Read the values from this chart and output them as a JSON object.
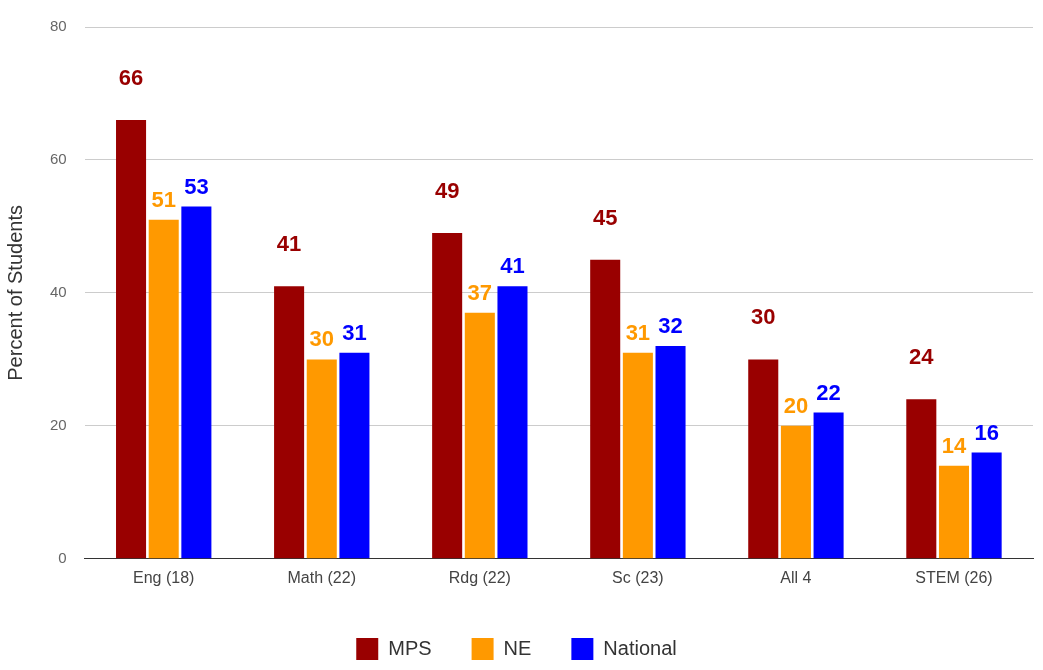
{
  "chart_data": {
    "type": "bar",
    "ylabel": "Percent of Students",
    "categories": [
      "Eng (18)",
      "Math (22)",
      "Rdg (22)",
      "Sc (23)",
      "All 4",
      "STEM (26)"
    ],
    "series": [
      {
        "name": "MPS",
        "color": "#990000",
        "values": [
          66,
          41,
          49,
          45,
          30,
          24
        ]
      },
      {
        "name": "NE",
        "color": "#ff9900",
        "values": [
          51,
          30,
          37,
          31,
          20,
          14
        ]
      },
      {
        "name": "National",
        "color": "#0000ff",
        "values": [
          53,
          31,
          41,
          32,
          22,
          16
        ]
      }
    ],
    "ylim": [
      0,
      80
    ],
    "yticks": [
      0,
      20,
      40,
      60,
      80
    ],
    "grid": "y",
    "legend": "bottom",
    "data_labels": true
  }
}
